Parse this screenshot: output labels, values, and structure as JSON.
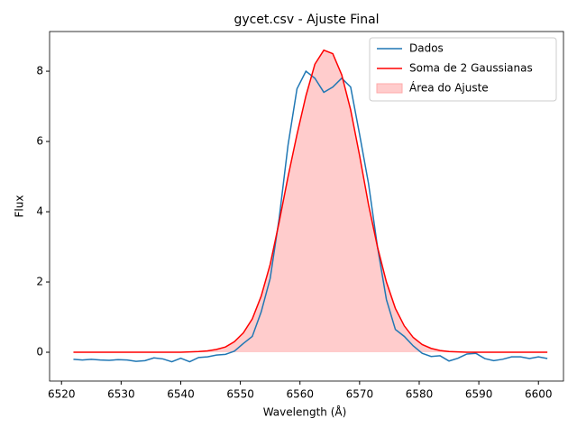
{
  "chart_data": {
    "type": "line",
    "title": "gycet.csv - Ajuste Final",
    "xlabel": "Wavelength (Å)",
    "ylabel": "Flux",
    "x": [
      6522,
      6523.5,
      6525,
      6526.5,
      6528,
      6529.5,
      6531,
      6532.5,
      6534,
      6535.5,
      6537,
      6538.5,
      6540,
      6541.5,
      6543,
      6544.5,
      6546,
      6547.5,
      6549,
      6550.5,
      6552,
      6553.5,
      6555,
      6556.5,
      6558,
      6559.5,
      6561,
      6562.5,
      6564,
      6565.5,
      6567,
      6568.5,
      6570,
      6571.5,
      6573,
      6574.5,
      6576,
      6577.5,
      6579,
      6580.5,
      6582,
      6583.5,
      6585,
      6586.5,
      6588,
      6589.5,
      6591,
      6592.5,
      6594,
      6595.5,
      6597,
      6598.5,
      6600,
      6601.5
    ],
    "series": [
      {
        "name": "Dados",
        "color": "#1f77b4",
        "values": [
          -0.2,
          -0.22,
          -0.2,
          -0.22,
          -0.23,
          -0.21,
          -0.22,
          -0.26,
          -0.24,
          -0.16,
          -0.19,
          -0.27,
          -0.17,
          -0.27,
          -0.15,
          -0.13,
          -0.08,
          -0.06,
          0.03,
          0.25,
          0.45,
          1.15,
          2.1,
          3.8,
          5.9,
          7.5,
          8.0,
          7.8,
          7.4,
          7.55,
          7.8,
          7.55,
          6.2,
          4.8,
          3.0,
          1.5,
          0.65,
          0.45,
          0.18,
          -0.03,
          -0.12,
          -0.1,
          -0.25,
          -0.17,
          -0.05,
          -0.03,
          -0.18,
          -0.24,
          -0.2,
          -0.13,
          -0.13,
          -0.18,
          -0.13,
          -0.18
        ]
      },
      {
        "name": "Soma de 2 Gaussianas",
        "color": "#ff0000",
        "values": [
          0,
          0,
          0,
          0,
          0,
          0,
          0,
          0,
          0,
          0,
          0,
          0,
          0,
          0.01,
          0.02,
          0.04,
          0.08,
          0.15,
          0.3,
          0.55,
          0.95,
          1.6,
          2.5,
          3.7,
          5.0,
          6.2,
          7.3,
          8.2,
          8.6,
          8.5,
          7.9,
          6.9,
          5.6,
          4.2,
          3.0,
          2.0,
          1.25,
          0.75,
          0.42,
          0.22,
          0.11,
          0.05,
          0.02,
          0.01,
          0,
          0,
          0,
          0,
          0,
          0,
          0,
          0,
          0,
          0
        ]
      }
    ],
    "fill_label": "Área do Ajuste",
    "fill_color": "#ffcccc",
    "xlim": [
      6518,
      6604.2
    ],
    "ylim": [
      -0.82,
      9.13
    ],
    "xticks": [
      6520,
      6530,
      6540,
      6550,
      6560,
      6570,
      6580,
      6590,
      6600
    ],
    "yticks": [
      0,
      2,
      4,
      6,
      8
    ],
    "legend": "upper right"
  }
}
